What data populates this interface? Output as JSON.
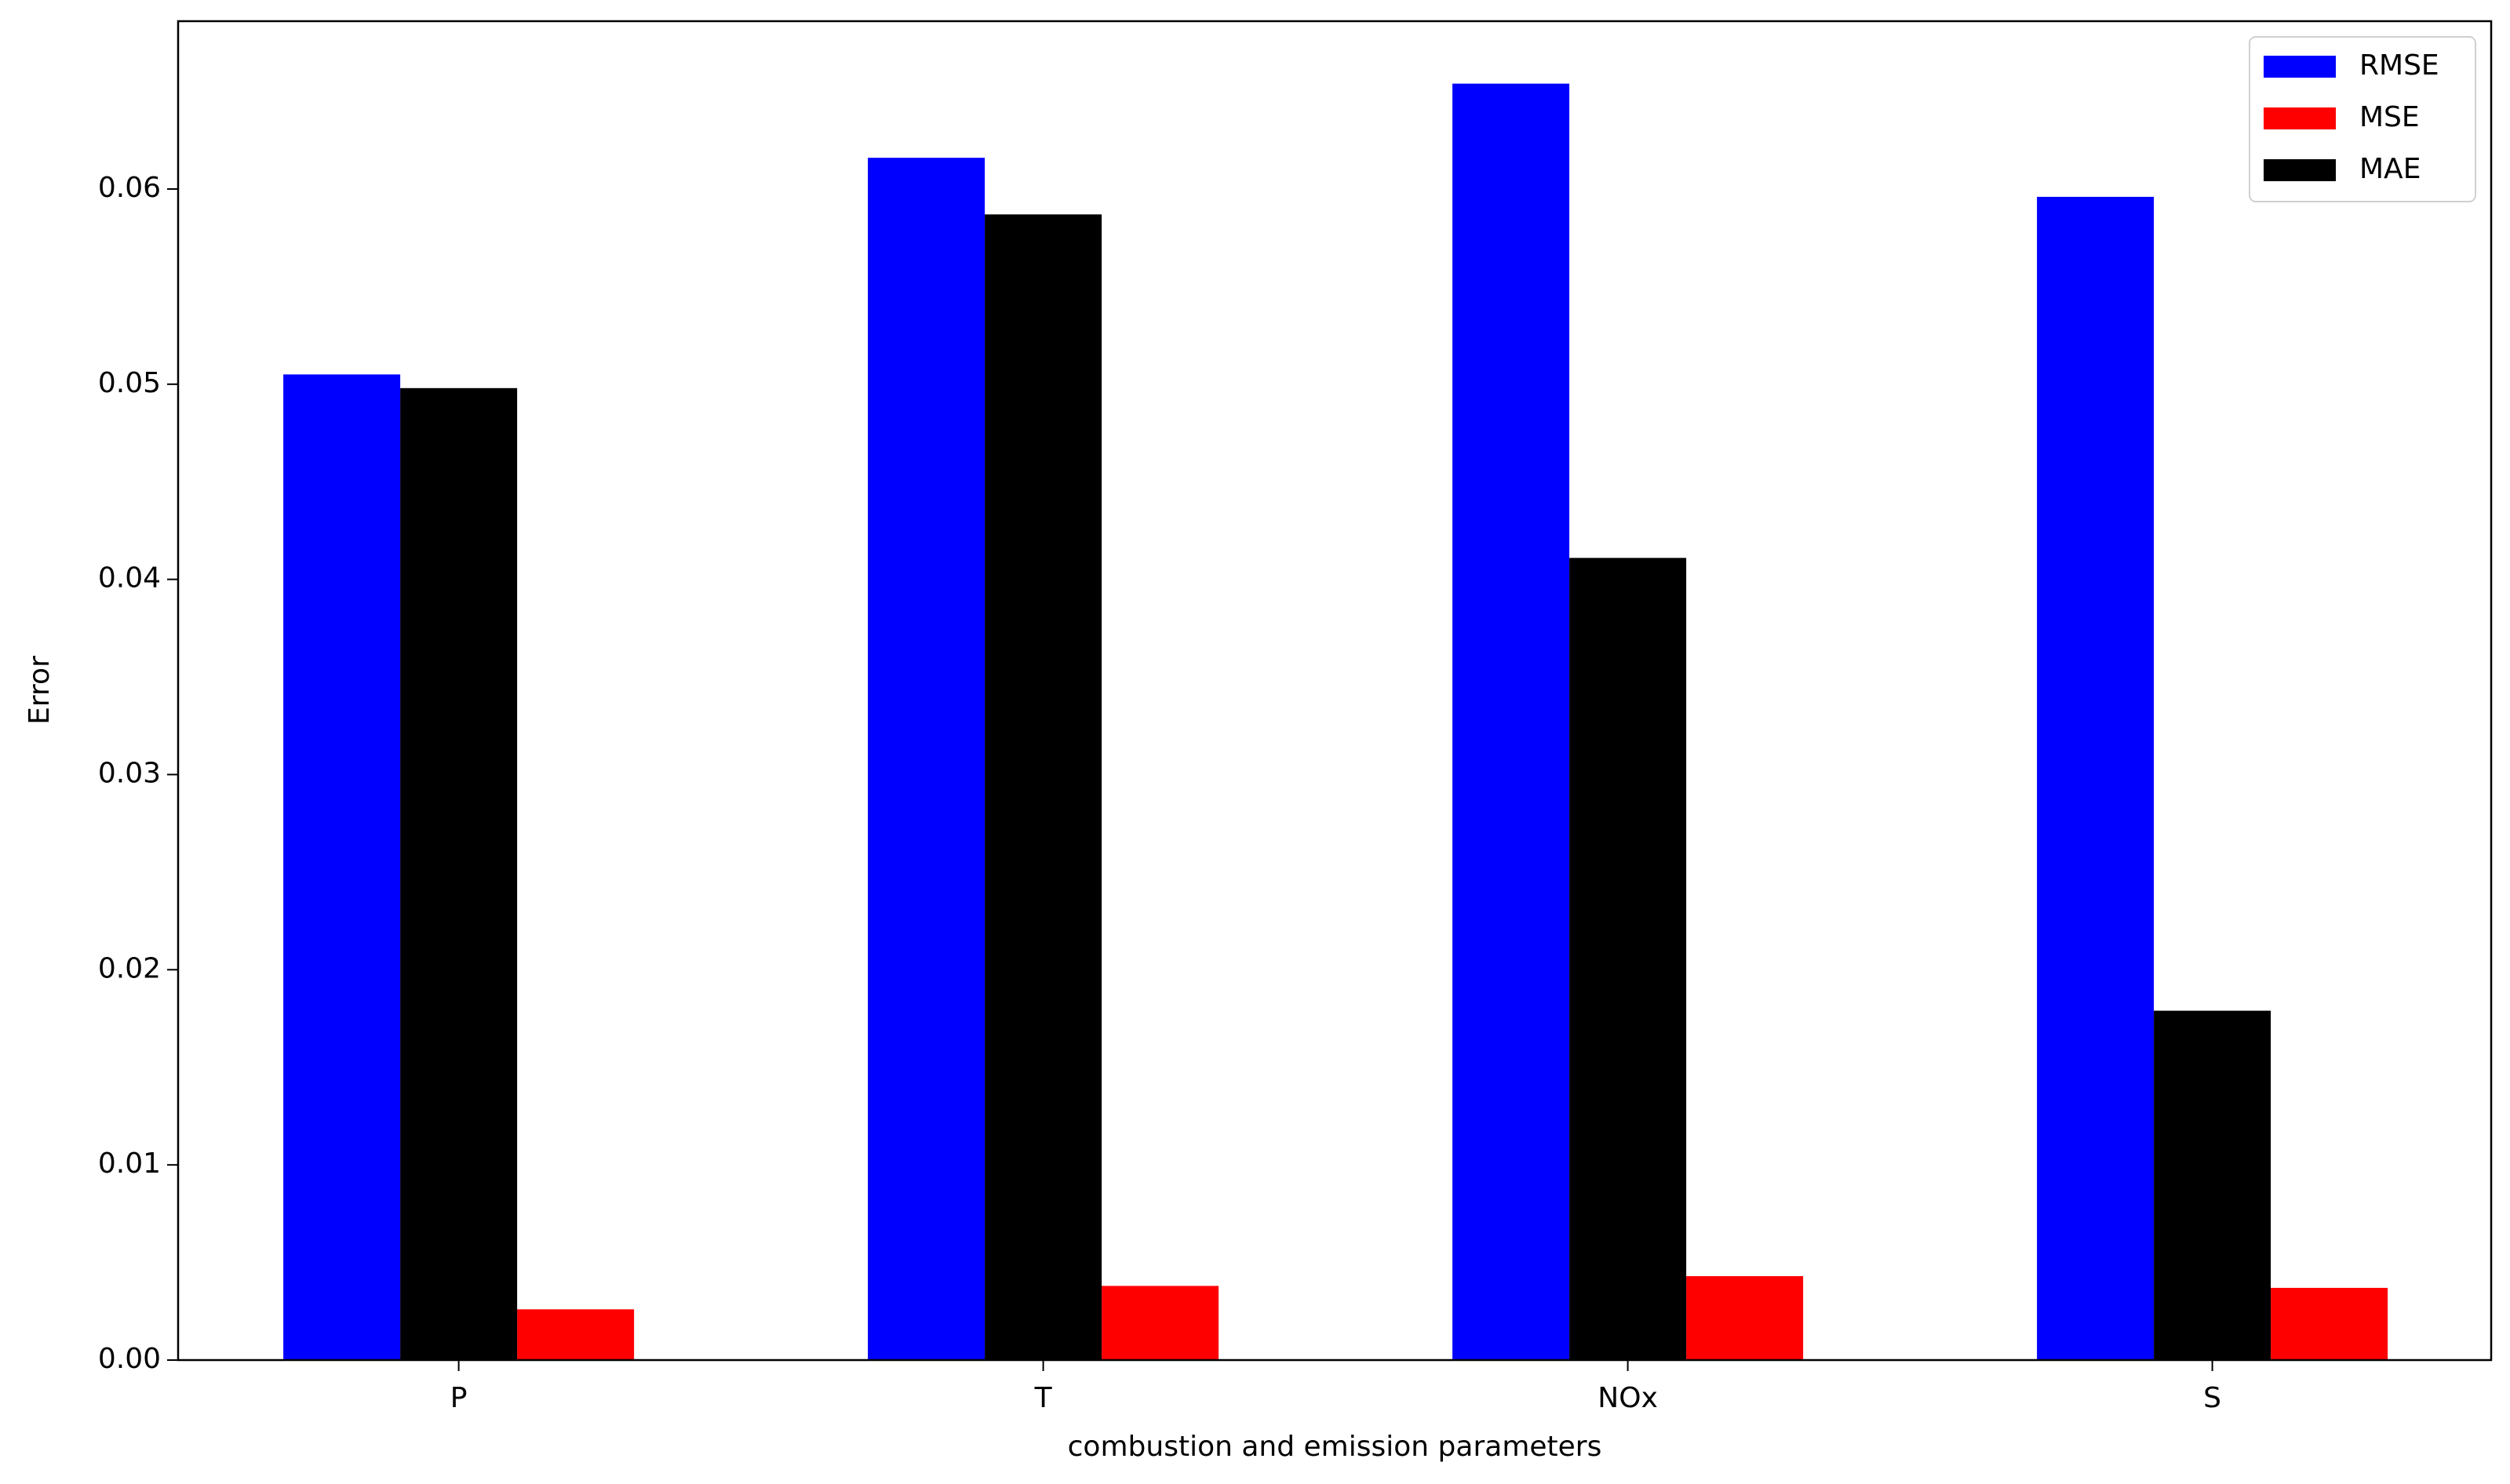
{
  "chart_data": {
    "type": "bar",
    "xlabel": "combustion and emission parameters",
    "ylabel": "Error",
    "categories": [
      "P",
      "T",
      "NOx",
      "S"
    ],
    "series": [
      {
        "name": "RMSE",
        "color": "#0000ff",
        "values": [
          0.0505,
          0.0616,
          0.0654,
          0.0596
        ]
      },
      {
        "name": "MSE",
        "color": "#ff0000",
        "values": [
          0.0026,
          0.0038,
          0.0043,
          0.0037
        ]
      },
      {
        "name": "MAE",
        "color": "#000000",
        "values": [
          0.0498,
          0.0587,
          0.0411,
          0.0179
        ]
      }
    ],
    "ylim": [
      0,
      0.0686
    ],
    "yticks": [
      {
        "value": 0,
        "label": "0.00"
      },
      0.01,
      0.02,
      0.03,
      0.04,
      0.05,
      0.06
    ],
    "grid": false,
    "legend": "upper right"
  }
}
